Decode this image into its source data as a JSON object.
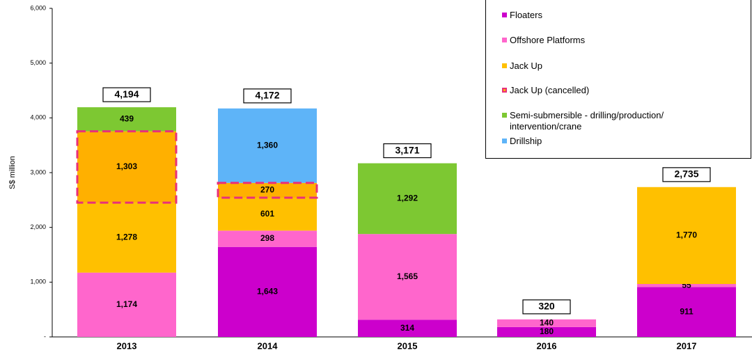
{
  "chart_data": {
    "type": "stacked_bar",
    "y_label": "S$ million",
    "categories": [
      "2013",
      "2014",
      "2015",
      "2016",
      "2017"
    ],
    "series": [
      {
        "name": "Floaters",
        "color": "#cc00cc",
        "values": [
          null,
          1643,
          314,
          180,
          911
        ],
        "value_labels": [
          null,
          "1,643",
          "314",
          "180",
          "911"
        ]
      },
      {
        "name": "Offshore Platforms",
        "color": "#ff66cc",
        "values": [
          1174,
          298,
          1565,
          140,
          55
        ],
        "value_labels": [
          "1,174",
          "298",
          "1,565",
          "140",
          "55"
        ]
      },
      {
        "name": "Jack Up",
        "color": "#ffc000",
        "values": [
          1278,
          601,
          null,
          null,
          1770
        ],
        "value_labels": [
          "1,278",
          "601",
          null,
          null,
          "1,770"
        ]
      },
      {
        "name": "Jack Up (cancelled)",
        "color": "#ffb000",
        "dashed": true,
        "values": [
          1303,
          270,
          null,
          null,
          null
        ],
        "value_labels": [
          "1,303",
          "270",
          null,
          null,
          null
        ]
      },
      {
        "name": "Semi-submersible - drilling/production/\nintervention/crane",
        "color": "#7dc832",
        "values": [
          439,
          null,
          1292,
          null,
          null
        ],
        "value_labels": [
          "439",
          null,
          "1,292",
          null,
          null
        ]
      },
      {
        "name": "Drillship",
        "color": "#5eb4f8",
        "values": [
          null,
          1360,
          null,
          null,
          null
        ],
        "value_labels": [
          null,
          "1,360",
          null,
          null,
          null
        ]
      }
    ],
    "totals": [
      4194,
      4172,
      3171,
      320,
      2735
    ],
    "total_labels": [
      "4,194",
      "4,172",
      "3,171",
      "320",
      "2,735"
    ],
    "ylim": [
      0,
      6000
    ],
    "yticks": [
      {
        "value": 0,
        "label": "-"
      },
      {
        "value": 1000,
        "label": "1,000"
      },
      {
        "value": 2000,
        "label": "2,000"
      },
      {
        "value": 3000,
        "label": "3,000"
      },
      {
        "value": 4000,
        "label": "4,000"
      },
      {
        "value": 5000,
        "label": "5,000"
      },
      {
        "value": 6000,
        "label": "6,000"
      }
    ],
    "legend": "top-right"
  }
}
